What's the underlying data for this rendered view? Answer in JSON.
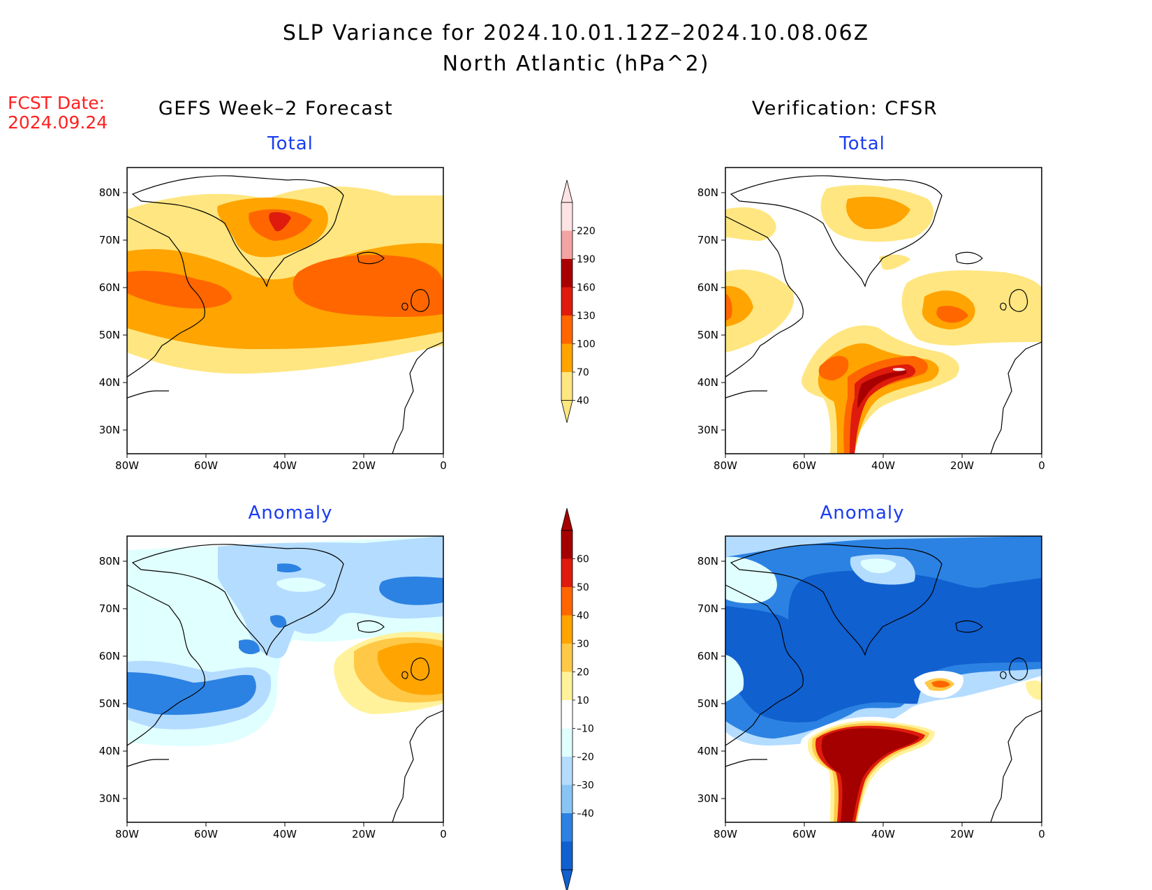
{
  "title": {
    "line1": "SLP Variance for 2024.10.01.12Z–2024.10.08.06Z",
    "line2": "North Atlantic (hPa^2)"
  },
  "fcst": {
    "line1": "FCST Date:",
    "line2": "2024.09.24"
  },
  "columns": {
    "left": "GEFS Week–2 Forecast",
    "right": "Verification: CFSR"
  },
  "panels": [
    {
      "id": "fc-total",
      "subtitle": "Total"
    },
    {
      "id": "ver-total",
      "subtitle": "Total"
    },
    {
      "id": "fc-anom",
      "subtitle": "Anomaly"
    },
    {
      "id": "ver-anom",
      "subtitle": "Anomaly"
    }
  ],
  "axes": {
    "lon_labels": [
      "80W",
      "60W",
      "40W",
      "20W",
      "0"
    ],
    "lat_labels": [
      "80N",
      "70N",
      "60N",
      "50N",
      "40N",
      "30N"
    ]
  },
  "colorbars": {
    "total": {
      "levels": [
        "220",
        "190",
        "160",
        "130",
        "100",
        "70",
        "40"
      ],
      "colors": [
        "#fde3e3",
        "#f4a3a3",
        "#a80000",
        "#de1b0c",
        "#ff6600",
        "#ffa400",
        "#ffe680"
      ]
    },
    "anomaly": {
      "levels": [
        "60",
        "50",
        "40",
        "30",
        "20",
        "10",
        "–10",
        "–20",
        "–30",
        "–40"
      ],
      "colors": [
        "#a50000",
        "#de1b0c",
        "#ff6600",
        "#ffa400",
        "#ffc846",
        "#fff29a",
        "#ffffff",
        "#e0ffff",
        "#b4dcff",
        "#88c4f4",
        "#2c82e2",
        "#1060d0"
      ]
    }
  }
}
